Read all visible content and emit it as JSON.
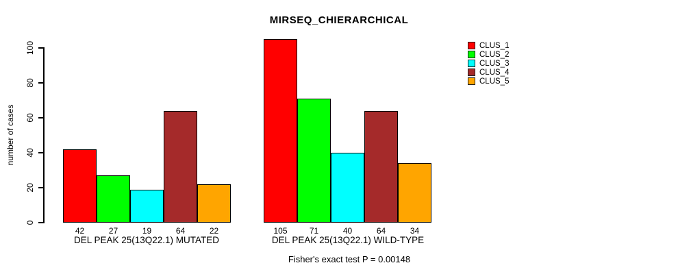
{
  "title": "MIRSEQ_CHIERARCHICAL",
  "footer": "Fisher's exact test P = 0.00148",
  "chart_data": {
    "type": "bar",
    "title": "MIRSEQ_CHIERARCHICAL",
    "ylabel": "number of cases",
    "xlabel": "",
    "ylim": [
      0,
      105
    ],
    "yticks": [
      0,
      20,
      40,
      60,
      80,
      100
    ],
    "grid": false,
    "legend_position": "right",
    "categories": [
      "CLUS_1",
      "CLUS_2",
      "CLUS_3",
      "CLUS_4",
      "CLUS_5"
    ],
    "series_colors": [
      "#FF0000",
      "#00FF00",
      "#00FFFF",
      "#A52A2A",
      "#FFA500"
    ],
    "groups": [
      {
        "label": "DEL PEAK 25(13Q22.1) MUTATED",
        "values": [
          42,
          27,
          19,
          64,
          22
        ]
      },
      {
        "label": "DEL PEAK 25(13Q22.1) WILD-TYPE",
        "values": [
          105,
          71,
          40,
          64,
          34
        ]
      }
    ],
    "legend": [
      {
        "label": "CLUS_1",
        "color": "#FF0000"
      },
      {
        "label": "CLUS_2",
        "color": "#00FF00"
      },
      {
        "label": "CLUS_3",
        "color": "#00FFFF"
      },
      {
        "label": "CLUS_4",
        "color": "#A52A2A"
      },
      {
        "label": "CLUS_5",
        "color": "#FFA500"
      }
    ],
    "annotation": "Fisher's exact test P = 0.00148"
  }
}
